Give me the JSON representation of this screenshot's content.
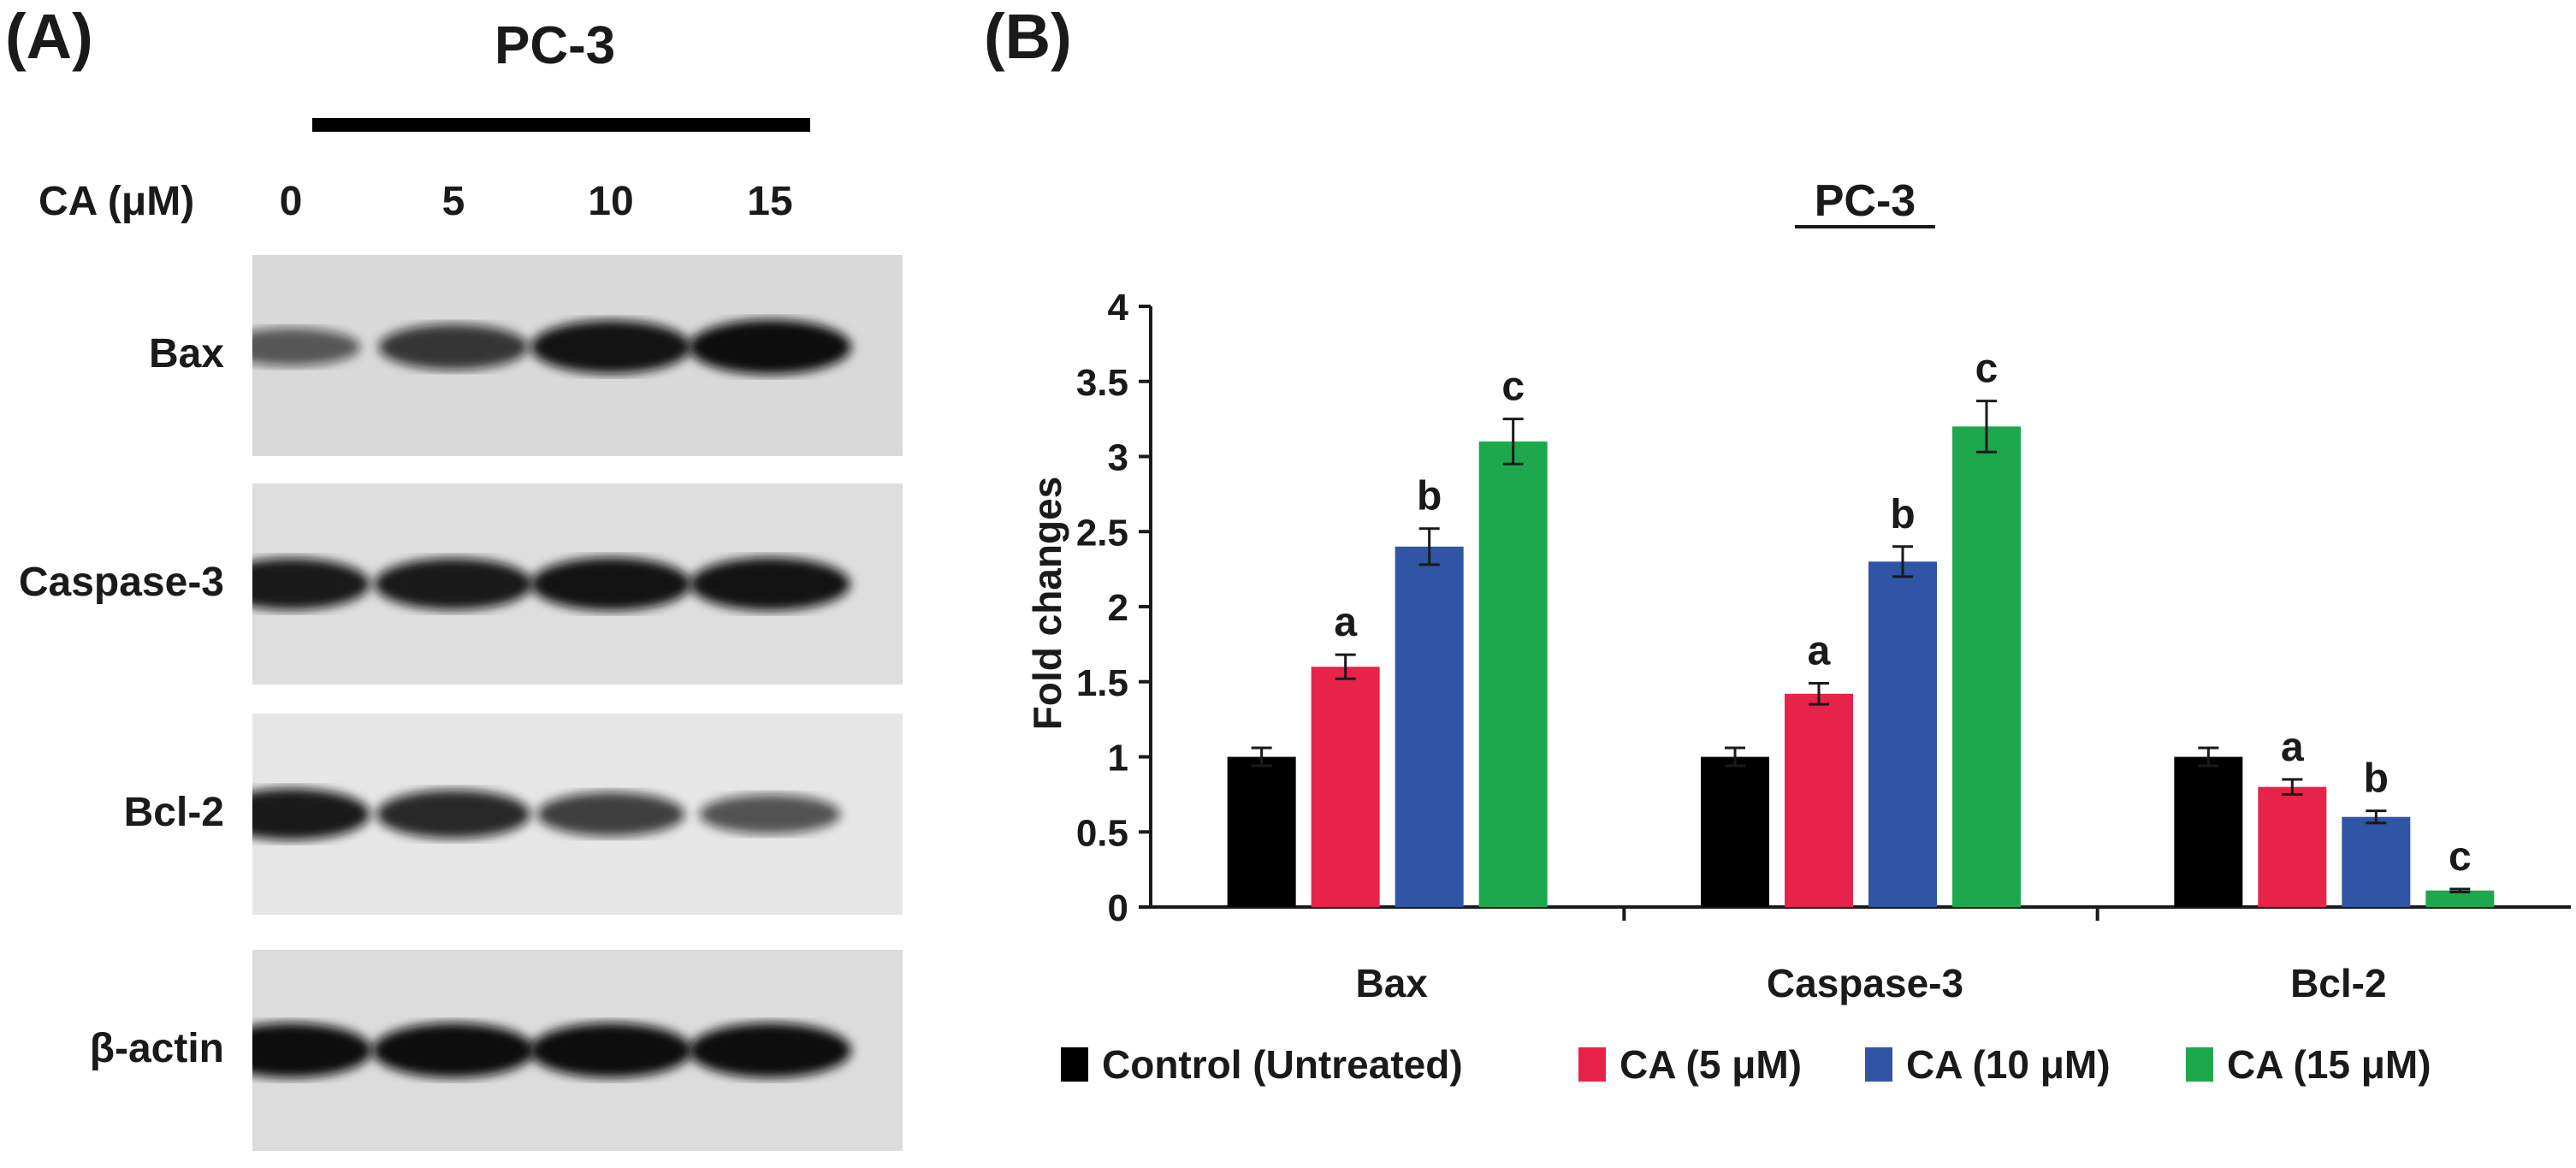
{
  "panel_a": {
    "letter": "(A)",
    "cell_line": "PC-3",
    "dose_label": "CA (μM)",
    "lanes": [
      "0",
      "5",
      "10",
      "15"
    ],
    "rows": [
      {
        "label": "Bax",
        "intensities": [
          0.45,
          0.7,
          0.95,
          1.0
        ]
      },
      {
        "label": "Caspase-3",
        "intensities": [
          0.9,
          0.9,
          0.95,
          0.95
        ]
      },
      {
        "label": "Bcl-2",
        "intensities": [
          0.9,
          0.8,
          0.65,
          0.5
        ]
      },
      {
        "label": "β-actin",
        "intensities": [
          1.0,
          1.0,
          1.0,
          1.0
        ]
      }
    ]
  },
  "panel_b": {
    "letter": "(B)"
  },
  "colors": {
    "control": "#000000",
    "ca5": "#e8234a",
    "ca10": "#2f55a4",
    "ca15": "#1ea84e"
  },
  "chart_data": {
    "type": "bar",
    "title": "PC-3",
    "xlabel": "",
    "ylabel": "Fold changes",
    "ylim": [
      0,
      4
    ],
    "yticks": [
      "0",
      "0.5",
      "1",
      "1.5",
      "2",
      "2.5",
      "3",
      "3.5",
      "4"
    ],
    "categories": [
      "Bax",
      "Caspase-3",
      "Bcl-2"
    ],
    "series": [
      {
        "name": "Control (Untreated)",
        "color": "#000000",
        "values": [
          1.0,
          1.0,
          1.0
        ],
        "errors": [
          0.06,
          0.06,
          0.06
        ],
        "labels": [
          "",
          "",
          ""
        ]
      },
      {
        "name": "CA (5 μM)",
        "color": "#e8234a",
        "values": [
          1.6,
          1.42,
          0.8
        ],
        "errors": [
          0.08,
          0.07,
          0.05
        ],
        "labels": [
          "a",
          "a",
          "a"
        ]
      },
      {
        "name": "CA (10 μM)",
        "color": "#2f55a4",
        "values": [
          2.4,
          2.3,
          0.6
        ],
        "errors": [
          0.12,
          0.1,
          0.04
        ],
        "labels": [
          "b",
          "b",
          "b"
        ]
      },
      {
        "name": "CA (15 μM)",
        "color": "#1ea84e",
        "values": [
          3.1,
          3.2,
          0.11
        ],
        "errors": [
          0.15,
          0.17,
          0.01
        ],
        "labels": [
          "c",
          "c",
          "c"
        ]
      }
    ],
    "legend_position": "bottom",
    "grid": false
  }
}
